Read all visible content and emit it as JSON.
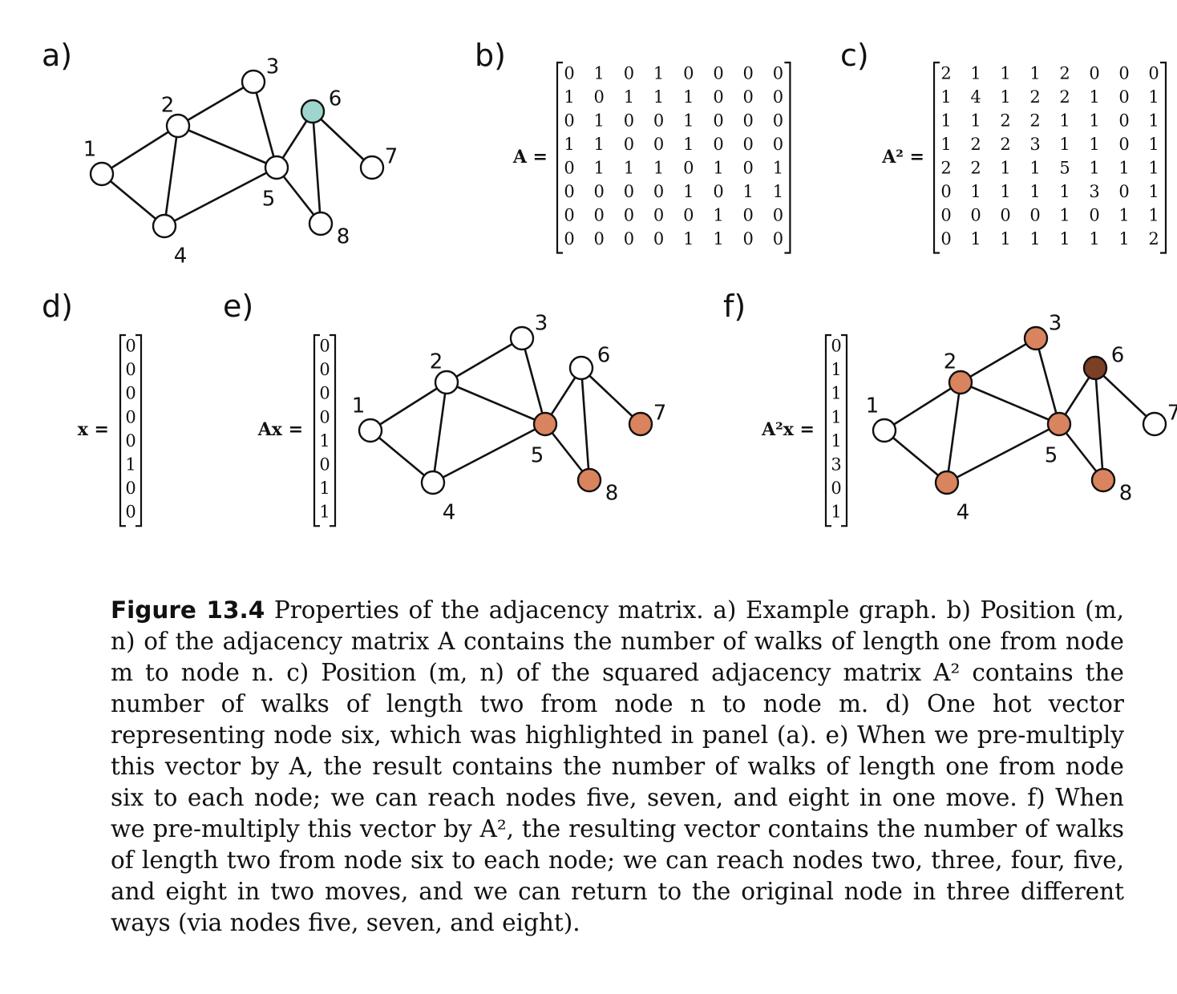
{
  "panels": {
    "a": {
      "label": "a)"
    },
    "b": {
      "label": "b)",
      "eq_label": "A ="
    },
    "c": {
      "label": "c)",
      "eq_label": "A² ="
    },
    "d": {
      "label": "d)",
      "eq_label": "x ="
    },
    "e": {
      "label": "e)",
      "eq_label": "Ax ="
    },
    "f": {
      "label": "f)",
      "eq_label": "A²x ="
    }
  },
  "graph": {
    "nodes": [
      "1",
      "2",
      "3",
      "4",
      "5",
      "6",
      "7",
      "8"
    ],
    "edges": [
      [
        1,
        2
      ],
      [
        1,
        4
      ],
      [
        2,
        3
      ],
      [
        2,
        4
      ],
      [
        2,
        5
      ],
      [
        3,
        5
      ],
      [
        4,
        5
      ],
      [
        5,
        6
      ],
      [
        5,
        8
      ],
      [
        6,
        7
      ],
      [
        6,
        8
      ]
    ]
  },
  "colors": {
    "white": "#ffffff",
    "highlight_a": "#9fd5cf",
    "reached": "#d9845e",
    "reached_strong": "#7a3f25"
  },
  "node_fills": {
    "a": [
      "white",
      "white",
      "white",
      "white",
      "white",
      "highlight_a",
      "white",
      "white"
    ],
    "e": [
      "white",
      "white",
      "white",
      "white",
      "reached",
      "white",
      "reached",
      "reached"
    ],
    "f": [
      "white",
      "reached",
      "reached",
      "reached",
      "reached",
      "reached_strong",
      "white",
      "reached"
    ]
  },
  "matrices": {
    "A": [
      [
        0,
        1,
        0,
        1,
        0,
        0,
        0,
        0
      ],
      [
        1,
        0,
        1,
        1,
        1,
        0,
        0,
        0
      ],
      [
        0,
        1,
        0,
        0,
        1,
        0,
        0,
        0
      ],
      [
        1,
        1,
        0,
        0,
        1,
        0,
        0,
        0
      ],
      [
        0,
        1,
        1,
        1,
        0,
        1,
        0,
        1
      ],
      [
        0,
        0,
        0,
        0,
        1,
        0,
        1,
        1
      ],
      [
        0,
        0,
        0,
        0,
        0,
        1,
        0,
        0
      ],
      [
        0,
        0,
        0,
        0,
        1,
        1,
        0,
        0
      ]
    ],
    "A2": [
      [
        2,
        1,
        1,
        1,
        2,
        0,
        0,
        0
      ],
      [
        1,
        4,
        1,
        2,
        2,
        1,
        0,
        1
      ],
      [
        1,
        1,
        2,
        2,
        1,
        1,
        0,
        1
      ],
      [
        1,
        2,
        2,
        3,
        1,
        1,
        0,
        1
      ],
      [
        2,
        2,
        1,
        1,
        5,
        1,
        1,
        1
      ],
      [
        0,
        1,
        1,
        1,
        1,
        3,
        0,
        1
      ],
      [
        0,
        0,
        0,
        0,
        1,
        0,
        1,
        1
      ],
      [
        0,
        1,
        1,
        1,
        1,
        1,
        1,
        2
      ]
    ]
  },
  "vectors": {
    "x": [
      0,
      0,
      0,
      0,
      0,
      1,
      0,
      0
    ],
    "Ax": [
      0,
      0,
      0,
      0,
      1,
      0,
      1,
      1
    ],
    "A2x": [
      0,
      1,
      1,
      1,
      1,
      3,
      0,
      1
    ]
  },
  "caption": {
    "title": "Figure 13.4",
    "text": "Properties of the adjacency matrix. a) Example graph. b) Position (m, n) of the adjacency matrix A contains the number of walks of length one from node m to node n. c) Position (m, n) of the squared adjacency matrix A² contains the number of walks of length two from node n to node m. d) One hot vector representing node six, which was highlighted in panel (a). e) When we pre-multiply this vector by A, the result contains the number of walks of length one from node six to each node; we can reach nodes five, seven, and eight in one move. f) When we pre-multiply this vector by A², the resulting vector contains the number of walks of length two from node six to each node; we can reach nodes two, three, four, five, and eight in two moves, and we can return to the original node in three different ways (via nodes five, seven, and eight)."
  }
}
